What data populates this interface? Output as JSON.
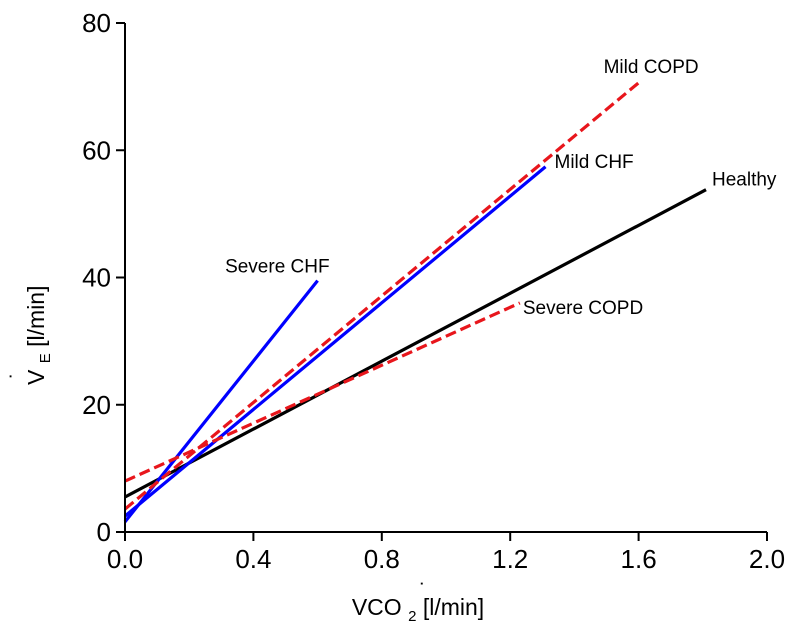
{
  "chart_data": {
    "type": "line",
    "title": "",
    "xlabel": {
      "dot": "˙",
      "base": "VCO",
      "sub": "2",
      "rest": " [l/min]"
    },
    "ylabel": {
      "dot": "˙",
      "base": "V",
      "sub": "E",
      "rest": " [l/min]"
    },
    "xlim": [
      0.0,
      2.0
    ],
    "ylim": [
      0,
      80
    ],
    "xticks": [
      0.0,
      0.4,
      0.8,
      1.2,
      1.6,
      2.0
    ],
    "xtick_labels": [
      "0.0",
      "0.4",
      "0.8",
      "1.2",
      "1.6",
      "2.0"
    ],
    "yticks": [
      0,
      20,
      40,
      60,
      80
    ],
    "ytick_labels": [
      "0",
      "20",
      "40",
      "60",
      "80"
    ],
    "series": [
      {
        "name": "Healthy",
        "label": "Healthy",
        "color": "#000000",
        "dash": "solid",
        "x": [
          0.0,
          1.81
        ],
        "y": [
          5.5,
          53.8
        ]
      },
      {
        "name": "Mild CHF",
        "label": "Mild CHF",
        "color": "#0000ff",
        "dash": "solid",
        "x": [
          0.0,
          1.31
        ],
        "y": [
          2.5,
          57.4
        ]
      },
      {
        "name": "Severe CHF",
        "label": "Severe CHF",
        "color": "#0000ff",
        "dash": "solid",
        "x": [
          0.0,
          0.6
        ],
        "y": [
          1.6,
          39.5
        ]
      },
      {
        "name": "Mild COPD",
        "label": "Mild COPD",
        "color": "#e8161c",
        "dash": "dashed",
        "x": [
          0.0,
          1.6
        ],
        "y": [
          3.6,
          70.6
        ]
      },
      {
        "name": "Severe COPD",
        "label": "Severe COPD",
        "color": "#e8161c",
        "dash": "dashed",
        "x": [
          0.0,
          1.23
        ],
        "y": [
          8.0,
          36.0
        ]
      }
    ]
  }
}
